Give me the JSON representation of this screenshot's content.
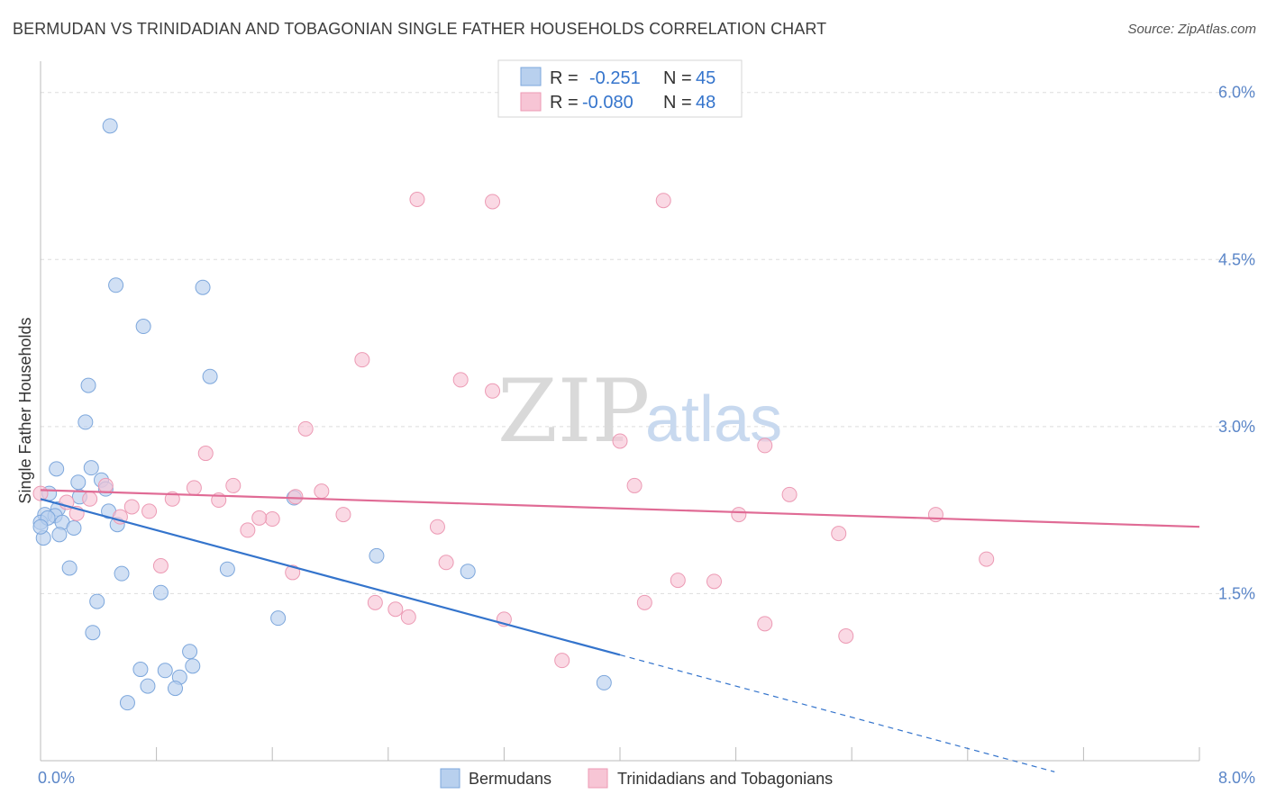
{
  "header": {
    "title": "BERMUDAN VS TRINIDADIAN AND TOBAGONIAN SINGLE FATHER HOUSEHOLDS CORRELATION CHART",
    "source": "Source: ZipAtlas.com"
  },
  "watermark": {
    "zip": "ZIP",
    "atlas": "atlas"
  },
  "colors": {
    "blue_fill": "#b8d0ee",
    "blue_stroke": "#7da7dc",
    "blue_line": "#3474cc",
    "pink_fill": "#f7c5d5",
    "pink_stroke": "#ec9ab4",
    "pink_line": "#e06b95",
    "grid": "#dddddd",
    "tick_text": "#5b86c8"
  },
  "stats_legend": {
    "rows": [
      {
        "r_label": "R =",
        "r_value": "-0.251",
        "n_label": "N =",
        "n_value": "45",
        "color": "blue"
      },
      {
        "r_label": "R =",
        "r_value": "-0.080",
        "n_label": "N =",
        "n_value": "48",
        "color": "pink"
      }
    ]
  },
  "chart_data": {
    "type": "scatter",
    "title": "BERMUDAN VS TRINIDADIAN AND TOBAGONIAN SINGLE FATHER HOUSEHOLDS CORRELATION CHART",
    "ylabel": "Single Father Households",
    "xlim": [
      0,
      8
    ],
    "ylim": [
      0,
      6.2
    ],
    "x_tick_labels": [
      {
        "value": 0,
        "label": "0.0%"
      },
      {
        "value": 8,
        "label": "8.0%"
      }
    ],
    "y_tick_labels": [
      {
        "value": 1.5,
        "label": "1.5%"
      },
      {
        "value": 3.0,
        "label": "3.0%"
      },
      {
        "value": 4.5,
        "label": "4.5%"
      },
      {
        "value": 6.0,
        "label": "6.0%"
      }
    ],
    "grid": true,
    "legend_position": "bottom",
    "series": [
      {
        "name": "Bermudans",
        "color": "blue",
        "trend": {
          "x0": 0.0,
          "y0": 2.35,
          "x1": 4.0,
          "y1": 0.95,
          "dashed_to_x": 7.0
        },
        "points": [
          [
            0.48,
            5.7
          ],
          [
            0.52,
            4.27
          ],
          [
            1.12,
            4.25
          ],
          [
            0.71,
            3.9
          ],
          [
            1.17,
            3.45
          ],
          [
            0.33,
            3.37
          ],
          [
            0.31,
            3.04
          ],
          [
            0.11,
            2.62
          ],
          [
            0.35,
            2.63
          ],
          [
            0.42,
            2.52
          ],
          [
            0.26,
            2.5
          ],
          [
            0.06,
            2.4
          ],
          [
            0.45,
            2.44
          ],
          [
            0.27,
            2.37
          ],
          [
            0.12,
            2.26
          ],
          [
            0.03,
            2.21
          ],
          [
            0.1,
            2.2
          ],
          [
            0.47,
            2.24
          ],
          [
            1.75,
            2.36
          ],
          [
            0.0,
            2.14
          ],
          [
            0.05,
            2.18
          ],
          [
            0.15,
            2.14
          ],
          [
            0.23,
            2.09
          ],
          [
            0.53,
            2.12
          ],
          [
            0.02,
            2.0
          ],
          [
            0.13,
            2.03
          ],
          [
            2.32,
            1.84
          ],
          [
            0.2,
            1.73
          ],
          [
            0.56,
            1.68
          ],
          [
            1.29,
            1.72
          ],
          [
            2.95,
            1.7
          ],
          [
            0.83,
            1.51
          ],
          [
            0.39,
            1.43
          ],
          [
            1.64,
            1.28
          ],
          [
            0.36,
            1.15
          ],
          [
            1.03,
            0.98
          ],
          [
            1.05,
            0.85
          ],
          [
            0.69,
            0.82
          ],
          [
            0.86,
            0.81
          ],
          [
            0.96,
            0.75
          ],
          [
            0.74,
            0.67
          ],
          [
            0.93,
            0.65
          ],
          [
            3.89,
            0.7
          ],
          [
            0.6,
            0.52
          ],
          [
            0.0,
            2.1
          ]
        ]
      },
      {
        "name": "Trinidadians and Tobagonians",
        "color": "pink",
        "trend": {
          "x0": 0.0,
          "y0": 2.43,
          "x1": 8.0,
          "y1": 2.1
        },
        "points": [
          [
            2.6,
            5.04
          ],
          [
            3.12,
            5.02
          ],
          [
            4.3,
            5.03
          ],
          [
            2.22,
            3.6
          ],
          [
            2.9,
            3.42
          ],
          [
            3.12,
            3.32
          ],
          [
            1.83,
            2.98
          ],
          [
            4.0,
            2.87
          ],
          [
            5.0,
            2.83
          ],
          [
            1.14,
            2.76
          ],
          [
            1.33,
            2.47
          ],
          [
            0.45,
            2.47
          ],
          [
            1.06,
            2.45
          ],
          [
            4.1,
            2.47
          ],
          [
            1.94,
            2.42
          ],
          [
            0.0,
            2.4
          ],
          [
            0.34,
            2.35
          ],
          [
            1.76,
            2.37
          ],
          [
            5.17,
            2.39
          ],
          [
            0.91,
            2.35
          ],
          [
            1.23,
            2.34
          ],
          [
            0.18,
            2.32
          ],
          [
            0.63,
            2.28
          ],
          [
            0.75,
            2.24
          ],
          [
            0.25,
            2.22
          ],
          [
            2.09,
            2.21
          ],
          [
            4.82,
            2.21
          ],
          [
            6.18,
            2.21
          ],
          [
            0.55,
            2.19
          ],
          [
            1.6,
            2.17
          ],
          [
            1.51,
            2.18
          ],
          [
            2.74,
            2.1
          ],
          [
            1.43,
            2.07
          ],
          [
            5.51,
            2.04
          ],
          [
            6.53,
            1.81
          ],
          [
            2.8,
            1.78
          ],
          [
            0.83,
            1.75
          ],
          [
            1.74,
            1.69
          ],
          [
            4.4,
            1.62
          ],
          [
            4.65,
            1.61
          ],
          [
            2.31,
            1.42
          ],
          [
            4.17,
            1.42
          ],
          [
            2.45,
            1.36
          ],
          [
            2.54,
            1.29
          ],
          [
            3.2,
            1.27
          ],
          [
            5.0,
            1.23
          ],
          [
            5.56,
            1.12
          ],
          [
            3.6,
            0.9
          ]
        ]
      }
    ]
  }
}
